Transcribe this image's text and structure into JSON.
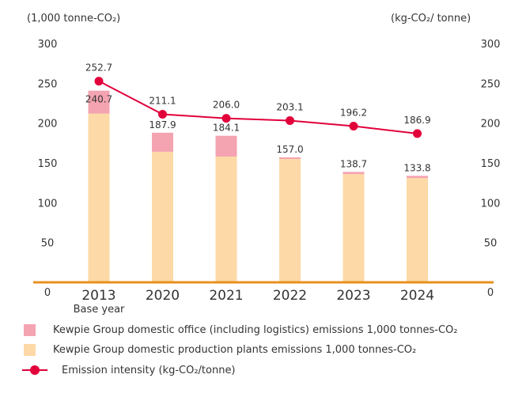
{
  "chart_data": {
    "type": "bar",
    "left_axis_label": "(1,000 tonne-CO₂)",
    "right_axis_label": "(kg-CO₂/ tonne)",
    "yticks": [
      "0",
      "50",
      "100",
      "150",
      "200",
      "250",
      "300"
    ],
    "ylim": [
      0,
      300
    ],
    "categories": [
      {
        "year": "2013",
        "sub": "Base year"
      },
      {
        "year": "2020",
        "sub": ""
      },
      {
        "year": "2021",
        "sub": ""
      },
      {
        "year": "2022",
        "sub": ""
      },
      {
        "year": "2023",
        "sub": ""
      },
      {
        "year": "2024",
        "sub": ""
      }
    ],
    "series": [
      {
        "name": "Kewpie Group domestic production plants emissions 1,000 tonnes-CO₂",
        "type": "stacked-bar",
        "color": "#fcd9a6",
        "values": [
          212,
          164,
          158,
          155,
          136,
          131
        ]
      },
      {
        "name": "Kewpie Group domestic office (including logistics) emissions 1,000 tonnes-CO₂",
        "type": "stacked-bar",
        "color": "#f4a3b1",
        "values": [
          28.7,
          23.9,
          26.1,
          2.0,
          2.7,
          2.8
        ]
      },
      {
        "name": "Emission intensity (kg-CO₂/tonne)",
        "type": "line",
        "color": "#e2003b",
        "values": [
          252.7,
          211.1,
          206.0,
          203.1,
          196.2,
          186.9
        ]
      }
    ],
    "bar_totals": [
      "240.7",
      "187.9",
      "184.1",
      "157.0",
      "138.7",
      "133.8"
    ],
    "intensity_labels": [
      "252.7",
      "211.1",
      "206.0",
      "203.1",
      "196.2",
      "186.9"
    ],
    "axis_color": "#e8901e",
    "grid": false,
    "legend_position": "bottom"
  },
  "legend": {
    "office": "Kewpie Group domestic office (including logistics) emissions 1,000 tonnes-CO₂",
    "plants": "Kewpie Group domestic production plants emissions 1,000 tonnes-CO₂",
    "intensity": "Emission intensity (kg-CO₂/tonne)"
  }
}
